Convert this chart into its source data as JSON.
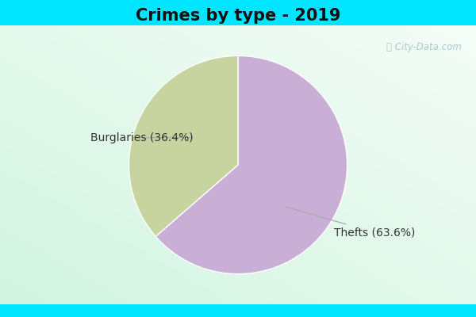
{
  "title": "Crimes by type - 2019",
  "slices": [
    63.6,
    36.4
  ],
  "labels": [
    "Thefts",
    "Burglaries"
  ],
  "percentages": [
    "63.6%",
    "36.4%"
  ],
  "colors": [
    "#c9aed6",
    "#c8d4a0"
  ],
  "bg_outer": "#00e5ff",
  "title_fontsize": 15,
  "label_fontsize": 10,
  "watermark": "City-Data.com",
  "start_angle": 90
}
